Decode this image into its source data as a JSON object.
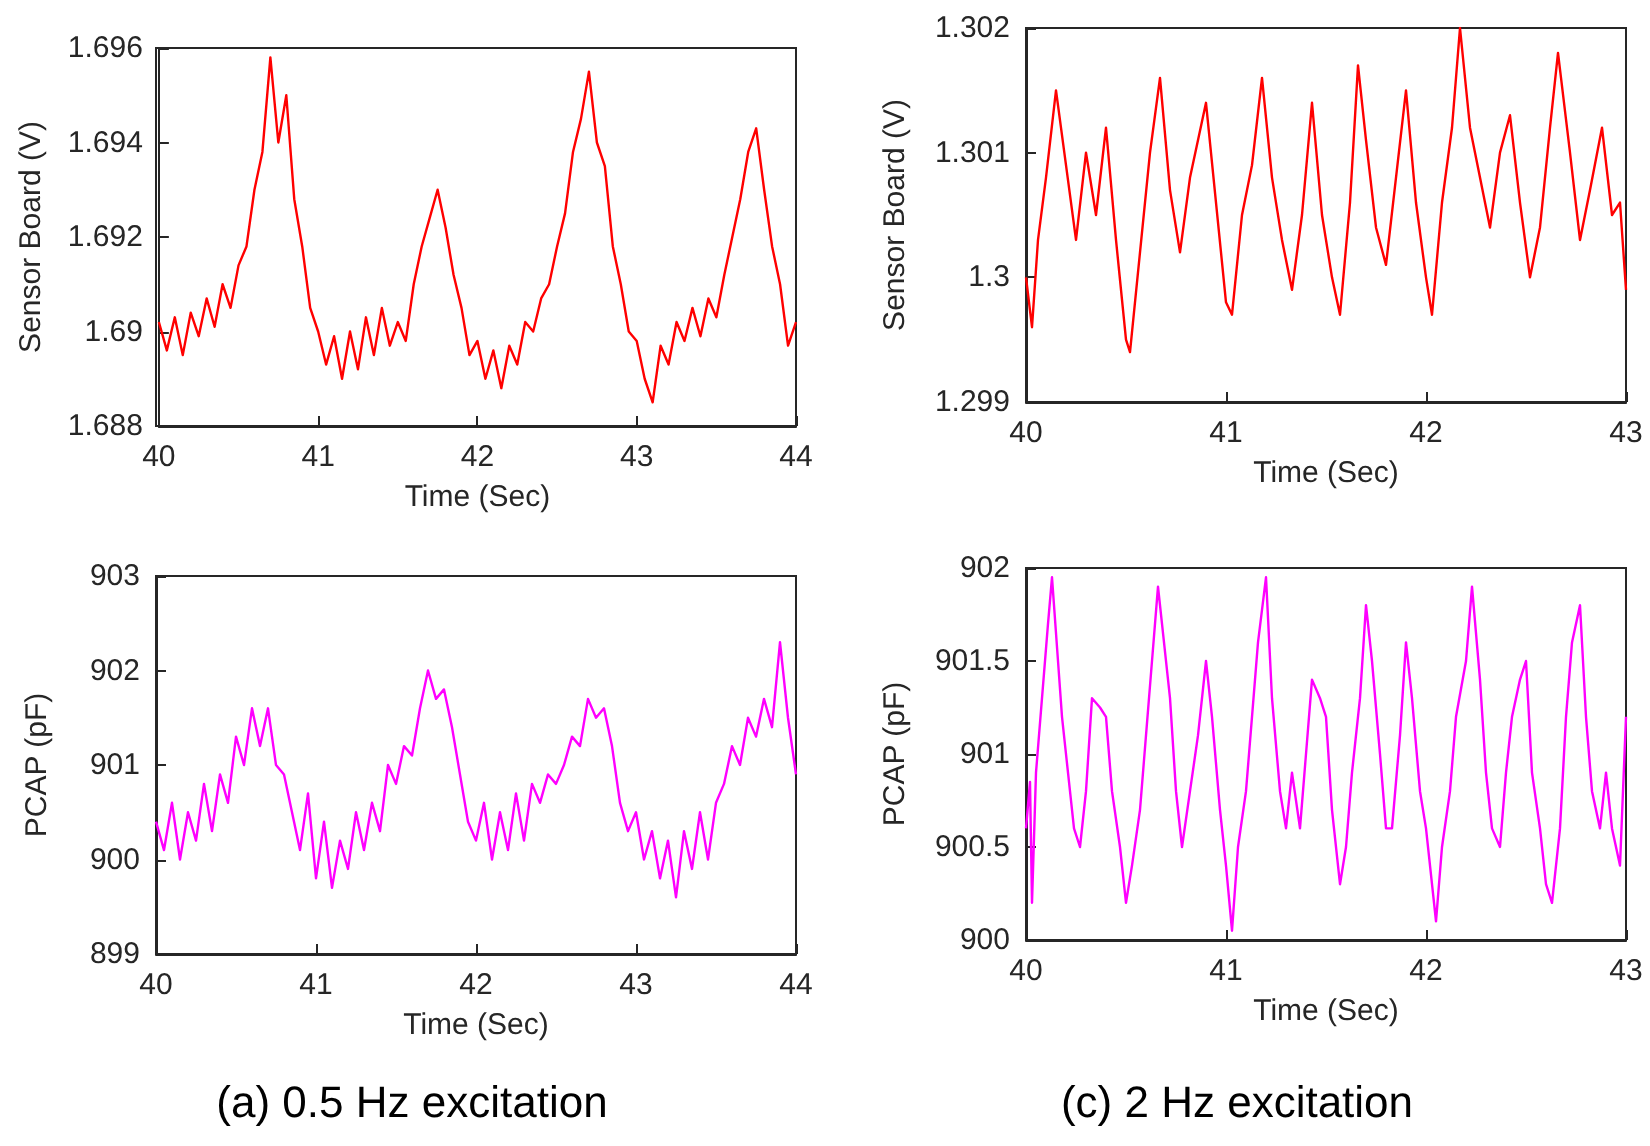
{
  "chart_data": [
    {
      "type": "line",
      "xlabel": "Time (Sec)",
      "ylabel": "Sensor Board (V)",
      "xlim": [
        40,
        44
      ],
      "xticks": [
        40,
        41,
        42,
        43,
        44
      ],
      "ylim": [
        1.688,
        1.696
      ],
      "yticks": [
        1.688,
        1.69,
        1.692,
        1.694,
        1.696
      ],
      "marker": "none",
      "line_style": "solid",
      "grid": false,
      "series": [
        {
          "color": "#ff0000",
          "x": [
            40.0,
            40.05,
            40.1,
            40.15,
            40.2,
            40.25,
            40.3,
            40.35,
            40.4,
            40.45,
            40.5,
            40.55,
            40.6,
            40.65,
            40.7,
            40.75,
            40.8,
            40.85,
            40.9,
            40.95,
            41.0,
            41.05,
            41.1,
            41.15,
            41.2,
            41.25,
            41.3,
            41.35,
            41.4,
            41.45,
            41.5,
            41.55,
            41.6,
            41.65,
            41.7,
            41.75,
            41.8,
            41.85,
            41.9,
            41.95,
            42.0,
            42.05,
            42.1,
            42.15,
            42.2,
            42.25,
            42.3,
            42.35,
            42.4,
            42.45,
            42.5,
            42.55,
            42.6,
            42.65,
            42.7,
            42.75,
            42.8,
            42.85,
            42.9,
            42.95,
            43.0,
            43.05,
            43.1,
            43.15,
            43.2,
            43.25,
            43.3,
            43.35,
            43.4,
            43.45,
            43.5,
            43.55,
            43.6,
            43.65,
            43.7,
            43.75,
            43.8,
            43.85,
            43.9,
            43.95,
            44.0
          ],
          "values": [
            1.6902,
            1.6896,
            1.6903,
            1.6895,
            1.6904,
            1.6899,
            1.6907,
            1.6901,
            1.691,
            1.6905,
            1.6914,
            1.6918,
            1.693,
            1.6938,
            1.6958,
            1.694,
            1.695,
            1.6928,
            1.6918,
            1.6905,
            1.69,
            1.6893,
            1.6899,
            1.689,
            1.69,
            1.6892,
            1.6903,
            1.6895,
            1.6905,
            1.6897,
            1.6902,
            1.6898,
            1.691,
            1.6918,
            1.6924,
            1.693,
            1.6922,
            1.6912,
            1.6905,
            1.6895,
            1.6898,
            1.689,
            1.6896,
            1.6888,
            1.6897,
            1.6893,
            1.6902,
            1.69,
            1.6907,
            1.691,
            1.6918,
            1.6925,
            1.6938,
            1.6945,
            1.6955,
            1.694,
            1.6935,
            1.6918,
            1.691,
            1.69,
            1.6898,
            1.689,
            1.6885,
            1.6897,
            1.6893,
            1.6902,
            1.6898,
            1.6905,
            1.6899,
            1.6907,
            1.6903,
            1.6912,
            1.692,
            1.6928,
            1.6938,
            1.6943,
            1.693,
            1.6918,
            1.691,
            1.6897,
            1.6902
          ]
        }
      ]
    },
    {
      "type": "line",
      "xlabel": "Time (Sec)",
      "ylabel": "Sensor Board (V)",
      "xlim": [
        40,
        43
      ],
      "xticks": [
        40,
        41,
        42,
        43
      ],
      "ylim": [
        1.299,
        1.302
      ],
      "yticks": [
        1.299,
        1.3,
        1.301,
        1.302
      ],
      "marker": "none",
      "line_style": "solid",
      "grid": false,
      "series": [
        {
          "color": "#ff0000",
          "x": [
            40.0,
            40.03,
            40.06,
            40.1,
            40.15,
            40.2,
            40.25,
            40.3,
            40.35,
            40.4,
            40.45,
            40.5,
            40.52,
            40.57,
            40.62,
            40.67,
            40.72,
            40.77,
            40.82,
            40.9,
            40.95,
            41.0,
            41.03,
            41.08,
            41.13,
            41.18,
            41.23,
            41.28,
            41.33,
            41.38,
            41.43,
            41.48,
            41.53,
            41.57,
            41.62,
            41.66,
            41.7,
            41.75,
            41.8,
            41.85,
            41.9,
            41.95,
            42.0,
            42.03,
            42.08,
            42.13,
            42.17,
            42.22,
            42.27,
            42.32,
            42.37,
            42.42,
            42.47,
            42.52,
            42.57,
            42.62,
            42.66,
            42.72,
            42.77,
            42.82,
            42.88,
            42.93,
            42.97,
            43.0
          ],
          "values": [
            1.3,
            1.2996,
            1.3003,
            1.3008,
            1.3015,
            1.3009,
            1.3003,
            1.301,
            1.3005,
            1.3012,
            1.3003,
            1.2995,
            1.2994,
            1.3002,
            1.301,
            1.3016,
            1.3007,
            1.3002,
            1.3008,
            1.3014,
            1.3006,
            1.2998,
            1.2997,
            1.3005,
            1.3009,
            1.3016,
            1.3008,
            1.3003,
            1.2999,
            1.3005,
            1.3014,
            1.3005,
            1.3,
            1.2997,
            1.3006,
            1.3017,
            1.3011,
            1.3004,
            1.3001,
            1.3008,
            1.3015,
            1.3006,
            1.3,
            1.2997,
            1.3006,
            1.3012,
            1.302,
            1.3012,
            1.3008,
            1.3004,
            1.301,
            1.3013,
            1.3006,
            1.3,
            1.3004,
            1.3012,
            1.3018,
            1.301,
            1.3003,
            1.3007,
            1.3012,
            1.3005,
            1.3006,
            1.2999
          ]
        }
      ]
    },
    {
      "type": "line",
      "xlabel": "Time (Sec)",
      "ylabel": "PCAP (pF)",
      "xlim": [
        40,
        44
      ],
      "xticks": [
        40,
        41,
        42,
        43,
        44
      ],
      "ylim": [
        899,
        903
      ],
      "yticks": [
        899,
        900,
        901,
        902,
        903
      ],
      "marker": "none",
      "line_style": "solid",
      "grid": false,
      "annotations": [
        "(a) 0.5 Hz excitation"
      ],
      "series": [
        {
          "color": "#ff00ff",
          "x": [
            40.0,
            40.05,
            40.1,
            40.15,
            40.2,
            40.25,
            40.3,
            40.35,
            40.4,
            40.45,
            40.5,
            40.55,
            40.6,
            40.65,
            40.7,
            40.75,
            40.8,
            40.85,
            40.9,
            40.95,
            41.0,
            41.05,
            41.1,
            41.15,
            41.2,
            41.25,
            41.3,
            41.35,
            41.4,
            41.45,
            41.5,
            41.55,
            41.6,
            41.65,
            41.7,
            41.75,
            41.8,
            41.85,
            41.9,
            41.95,
            42.0,
            42.05,
            42.1,
            42.15,
            42.2,
            42.25,
            42.3,
            42.35,
            42.4,
            42.45,
            42.5,
            42.55,
            42.6,
            42.65,
            42.7,
            42.75,
            42.8,
            42.85,
            42.9,
            42.95,
            43.0,
            43.05,
            43.1,
            43.15,
            43.2,
            43.25,
            43.3,
            43.35,
            43.4,
            43.45,
            43.5,
            43.55,
            43.6,
            43.65,
            43.7,
            43.75,
            43.8,
            43.85,
            43.9,
            43.95,
            44.0
          ],
          "values": [
            900.4,
            900.1,
            900.6,
            900.0,
            900.5,
            900.2,
            900.8,
            900.3,
            900.9,
            900.6,
            901.3,
            901.0,
            901.6,
            901.2,
            901.6,
            901.0,
            900.9,
            900.5,
            900.1,
            900.7,
            899.8,
            900.4,
            899.7,
            900.2,
            899.9,
            900.5,
            900.1,
            900.6,
            900.3,
            901.0,
            900.8,
            901.2,
            901.1,
            901.6,
            902.0,
            901.7,
            901.8,
            901.4,
            900.9,
            900.4,
            900.2,
            900.6,
            900.0,
            900.5,
            900.1,
            900.7,
            900.2,
            900.8,
            900.6,
            900.9,
            900.8,
            901.0,
            901.3,
            901.2,
            901.7,
            901.5,
            901.6,
            901.2,
            900.6,
            900.3,
            900.5,
            900.0,
            900.3,
            899.8,
            900.2,
            899.6,
            900.3,
            899.9,
            900.5,
            900.0,
            900.6,
            900.8,
            901.2,
            901.0,
            901.5,
            901.3,
            901.7,
            901.4,
            902.3,
            901.5,
            900.9
          ]
        }
      ]
    },
    {
      "type": "line",
      "xlabel": "Time (Sec)",
      "ylabel": "PCAP (pF)",
      "xlim": [
        40,
        43
      ],
      "xticks": [
        40,
        41,
        42,
        43
      ],
      "ylim": [
        900,
        902
      ],
      "yticks": [
        900,
        900.5,
        901,
        901.5,
        902
      ],
      "marker": "none",
      "line_style": "solid",
      "grid": false,
      "annotations": [
        "(c) 2 Hz excitation"
      ],
      "series": [
        {
          "color": "#ff00ff",
          "x": [
            40.0,
            40.02,
            40.03,
            40.05,
            40.08,
            40.11,
            40.13,
            40.16,
            40.18,
            40.21,
            40.24,
            40.27,
            40.3,
            40.33,
            40.37,
            40.4,
            40.43,
            40.47,
            40.5,
            40.53,
            40.57,
            40.6,
            40.63,
            40.66,
            40.69,
            40.72,
            40.75,
            40.78,
            40.82,
            40.86,
            40.9,
            40.93,
            40.97,
            41.0,
            41.03,
            41.06,
            41.1,
            41.13,
            41.16,
            41.2,
            41.23,
            41.27,
            41.3,
            41.33,
            41.37,
            41.4,
            41.43,
            41.47,
            41.5,
            41.53,
            41.57,
            41.6,
            41.63,
            41.67,
            41.7,
            41.73,
            41.77,
            41.8,
            41.83,
            41.87,
            41.9,
            41.93,
            41.97,
            42.0,
            42.03,
            42.05,
            42.08,
            42.12,
            42.15,
            42.2,
            42.23,
            42.27,
            42.3,
            42.33,
            42.37,
            42.4,
            42.43,
            42.47,
            42.5,
            42.53,
            42.57,
            42.6,
            42.63,
            42.67,
            42.7,
            42.73,
            42.77,
            42.8,
            42.83,
            42.87,
            42.9,
            42.93,
            42.97,
            43.0
          ],
          "values": [
            900.6,
            900.85,
            900.2,
            900.9,
            901.3,
            901.7,
            901.95,
            901.5,
            901.2,
            900.9,
            900.6,
            900.5,
            900.8,
            901.3,
            901.25,
            901.2,
            900.8,
            900.5,
            900.2,
            900.4,
            900.7,
            901.1,
            901.5,
            901.9,
            901.6,
            901.3,
            900.8,
            900.5,
            900.8,
            901.1,
            901.5,
            901.2,
            900.7,
            900.4,
            900.05,
            900.5,
            900.8,
            901.2,
            901.6,
            901.95,
            901.3,
            900.8,
            900.6,
            900.9,
            900.6,
            901.0,
            901.4,
            901.3,
            901.2,
            900.7,
            900.3,
            900.5,
            900.9,
            901.3,
            901.8,
            901.5,
            901.0,
            900.6,
            900.6,
            901.1,
            901.6,
            901.3,
            900.8,
            900.6,
            900.3,
            900.1,
            900.5,
            900.8,
            901.2,
            901.5,
            901.9,
            901.4,
            900.9,
            900.6,
            900.5,
            900.9,
            901.2,
            901.4,
            901.5,
            900.9,
            900.6,
            900.3,
            900.2,
            900.6,
            901.2,
            901.6,
            901.8,
            901.2,
            900.8,
            900.6,
            900.9,
            900.6,
            900.4,
            901.2
          ]
        }
      ]
    }
  ]
}
